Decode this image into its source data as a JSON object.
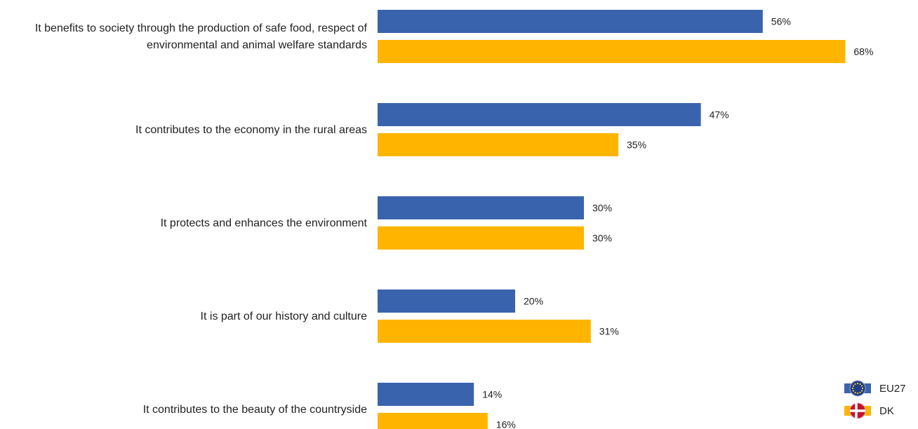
{
  "chart_data": {
    "type": "bar",
    "orientation": "horizontal",
    "categories": [
      [
        "It benefits to society through the production of safe food, respect of",
        "environmental and animal welfare standards"
      ],
      [
        "It contributes to the economy in the rural areas"
      ],
      [
        "It protects and enhances the environment"
      ],
      [
        "It is part of our history and culture"
      ],
      [
        "It contributes to the beauty of the countryside"
      ]
    ],
    "series": [
      {
        "name": "EU27",
        "color": "#3A63AD",
        "values": [
          56,
          47,
          30,
          20,
          14
        ]
      },
      {
        "name": "DK",
        "color": "#FFB400",
        "values": [
          68,
          35,
          30,
          31,
          16
        ]
      }
    ],
    "value_suffix": "%",
    "xlim": [
      0,
      100
    ],
    "grid": false,
    "legend": "bottom-right",
    "legend_icons": [
      "eu-flag-icon",
      "denmark-flag-icon"
    ]
  }
}
